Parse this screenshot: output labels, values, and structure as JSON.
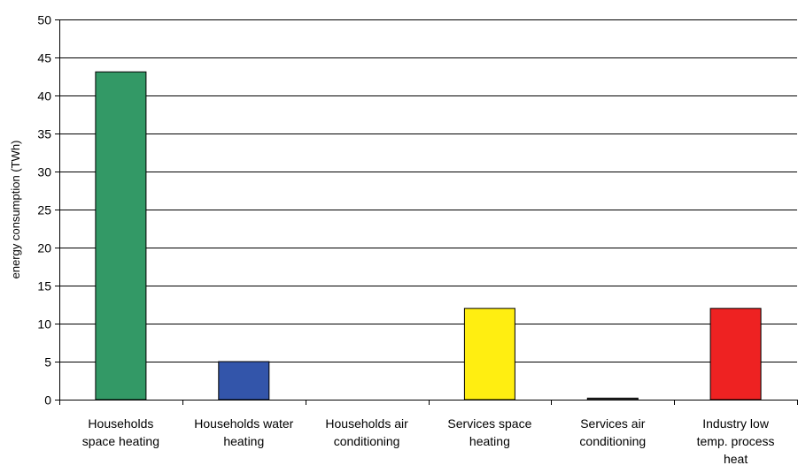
{
  "chart_data": {
    "type": "bar",
    "title": "",
    "xlabel": "",
    "ylabel": "energy consumption (TWh)",
    "ylim": [
      0,
      50
    ],
    "yticks": [
      0,
      5,
      10,
      15,
      20,
      25,
      30,
      35,
      40,
      45,
      50
    ],
    "grid": true,
    "legend": "none",
    "categories": [
      "Households space heating",
      "Households water heating",
      "Households air conditioning",
      "Services space heating",
      "Services air conditioning",
      "Industry low temp. process heat"
    ],
    "category_lines": [
      [
        "Households",
        "space heating"
      ],
      [
        "Households water",
        "heating"
      ],
      [
        "Households air",
        "conditioning"
      ],
      [
        "Services space",
        "heating"
      ],
      [
        "Services air",
        "conditioning"
      ],
      [
        "Industry low",
        "temp. process",
        "heat"
      ]
    ],
    "values": [
      43.1,
      5.0,
      0,
      12.0,
      0.2,
      12.0
    ],
    "colors": [
      "#339966",
      "#3355aa",
      "#aaaaaa",
      "#ffee11",
      "#555555",
      "#ee2222"
    ]
  }
}
